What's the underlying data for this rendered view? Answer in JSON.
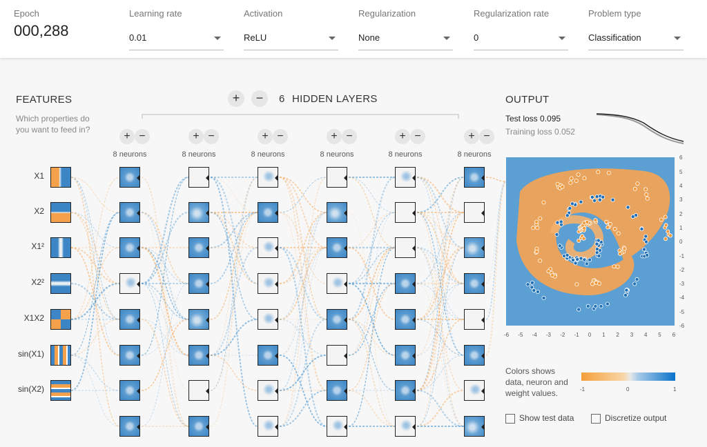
{
  "controls": {
    "epoch": {
      "label": "Epoch",
      "value": "000,288"
    },
    "learning_rate": {
      "label": "Learning rate",
      "value": "0.01"
    },
    "activation": {
      "label": "Activation",
      "value": "ReLU"
    },
    "regularization": {
      "label": "Regularization",
      "value": "None"
    },
    "regularization_rate": {
      "label": "Regularization rate",
      "value": "0"
    },
    "problem_type": {
      "label": "Problem type",
      "value": "Classification"
    }
  },
  "features": {
    "title": "FEATURES",
    "subtitle_line1": "Which properties do",
    "subtitle_line2": "you want to feed in?",
    "items": [
      "X1",
      "X2",
      "X1²",
      "X2²",
      "X1X2",
      "sin(X1)",
      "sin(X2)"
    ]
  },
  "hidden": {
    "count": "6",
    "label": "HIDDEN LAYERS",
    "add": "+",
    "remove": "−",
    "layers": [
      "8 neurons",
      "8 neurons",
      "8 neurons",
      "8 neurons",
      "8 neurons",
      "8 neurons"
    ]
  },
  "output": {
    "title": "OUTPUT",
    "test_loss_label": "Test loss",
    "test_loss": "0.095",
    "training_loss_label": "Training loss",
    "training_loss": "0.052",
    "legend_text_1": "Colors shows",
    "legend_text_2": "data, neuron and",
    "legend_text_3": "weight values.",
    "legend_ticks": [
      "-1",
      "0",
      "1"
    ],
    "axis_ticks": [
      "-6",
      "-5",
      "-4",
      "-3",
      "-2",
      "-1",
      "0",
      "1",
      "2",
      "3",
      "4",
      "5",
      "6"
    ],
    "show_test_data": "Show test data",
    "discretize_output": "Discretize output"
  },
  "colors": {
    "orange": "#f59f3a",
    "blue": "#3d86c5",
    "background": "#f7f7f7"
  }
}
